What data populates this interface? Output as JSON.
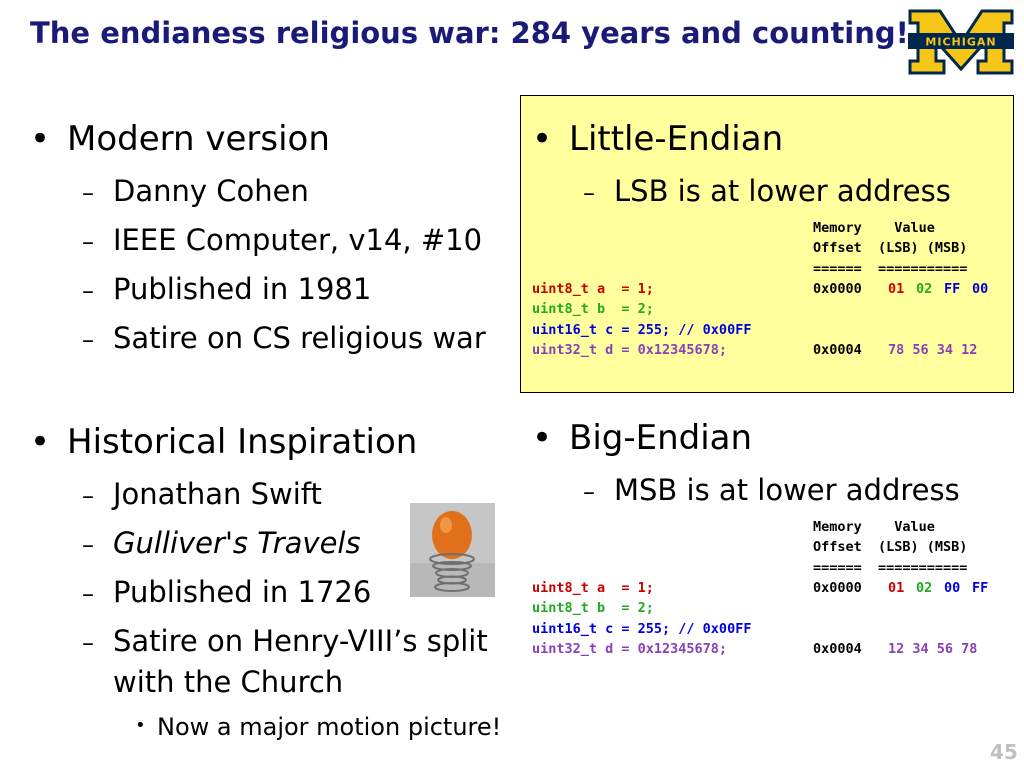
{
  "title": "The endianess religious war: 284 years and counting!",
  "logo_text": "MICHIGAN",
  "left": {
    "modern": {
      "heading": "Modern version",
      "items": [
        "Danny Cohen",
        "IEEE Computer, v14, #10",
        "Published in 1981",
        "Satire on CS religious war"
      ]
    },
    "historical": {
      "heading": "Historical Inspiration",
      "items": [
        "Jonathan Swift",
        "Gulliver's Travels",
        "Published in 1726",
        "Satire on Henry-VIII’s split",
        "with the Church"
      ],
      "subitem": "Now a major motion picture!"
    }
  },
  "little": {
    "heading": "Little-Endian",
    "sub": "LSB is at lower address",
    "hdr1": "Memory    Value",
    "hdr2": "Offset  (LSB) (MSB)",
    "hdr3": "======  ===========",
    "code": [
      "uint8_t a  = 1;",
      "uint8_t b  = 2;",
      "uint16_t c = 255; // 0x00FF",
      "uint32_t d = 0x12345678;"
    ],
    "row1_offset": "0x0000",
    "row1_bytes": [
      "01",
      "02",
      "FF",
      "00"
    ],
    "row4_offset": "0x0004",
    "row4_bytes": "78 56 34 12"
  },
  "big": {
    "heading": "Big-Endian",
    "sub": "MSB is at lower address",
    "hdr1": "Memory    Value",
    "hdr2": "Offset  (LSB) (MSB)",
    "hdr3": "======  ===========",
    "code": [
      "uint8_t a  = 1;",
      "uint8_t b  = 2;",
      "uint16_t c = 255; // 0x00FF",
      "uint32_t d = 0x12345678;"
    ],
    "row1_offset": "0x0000",
    "row1_bytes": [
      "01",
      "02",
      "00",
      "FF"
    ],
    "row4_offset": "0x0004",
    "row4_bytes": "12 34 56 78"
  },
  "page_number": "45",
  "colors": {
    "title": "#1a1a78",
    "box": "#ffff9e",
    "red": "#cc0000",
    "green": "#22aa22",
    "blue": "#0000dd",
    "purple": "#8a40b8",
    "maize": "#f5c518",
    "blue_dark": "#00274c"
  }
}
